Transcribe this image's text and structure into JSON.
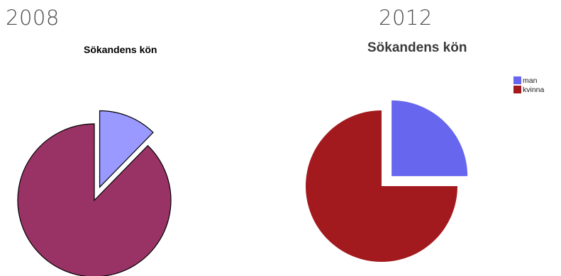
{
  "chart_data": [
    {
      "type": "pie",
      "heading": "2008",
      "title": "Sökandens kön",
      "slices": [
        {
          "label": "",
          "value": 0.123,
          "color": "#9999ff",
          "exploded": true
        },
        {
          "label": "",
          "value": 0.877,
          "color": "#993366",
          "exploded": false
        }
      ]
    },
    {
      "type": "pie",
      "heading": "2012",
      "title": "Sökandens kön",
      "legend": "top-right",
      "slices": [
        {
          "label": "man",
          "value": 0.25,
          "color": "#6666ee",
          "exploded": true
        },
        {
          "label": "kvinna",
          "value": 0.75,
          "color": "#a21a1e",
          "exploded": false
        }
      ]
    }
  ]
}
